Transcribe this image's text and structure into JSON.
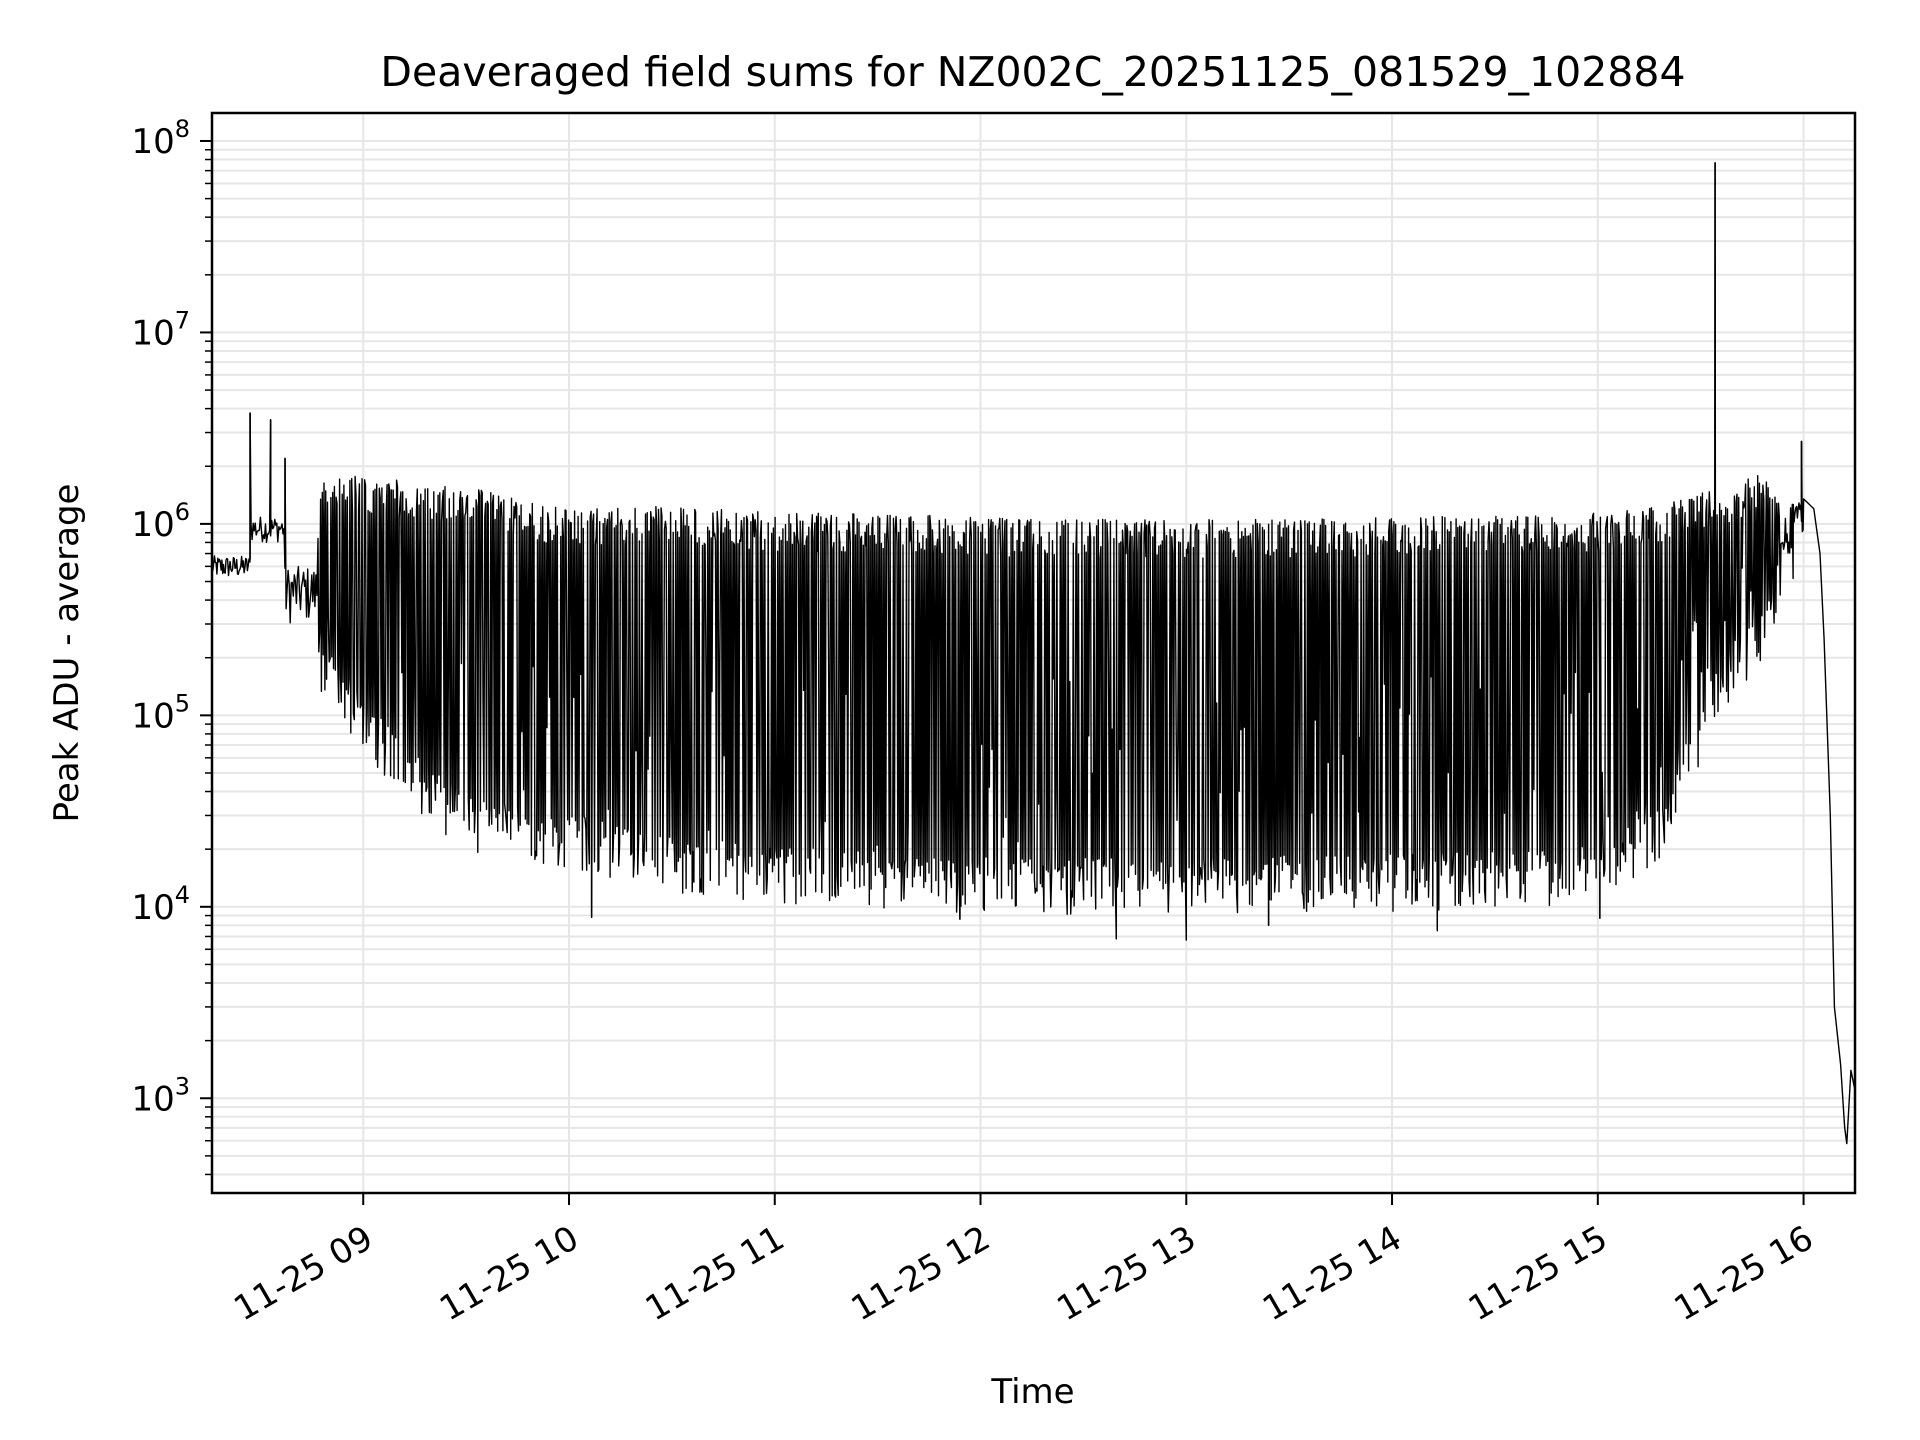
{
  "chart_data": {
    "type": "line",
    "title": "Deaveraged field sums for NZ002C_20251125_081529_102884",
    "xlabel": "Time",
    "ylabel": "Peak ADU - average",
    "yscale": "log",
    "ylim": [
      320,
      140000000
    ],
    "xlim_hours": [
      8.265,
      16.25
    ],
    "grid": true,
    "line_color": "#000000",
    "grid_color": "#e6e6e6",
    "x_ticks": [
      {
        "hour": 9,
        "label": "11-25 09"
      },
      {
        "hour": 10,
        "label": "11-25 10"
      },
      {
        "hour": 11,
        "label": "11-25 11"
      },
      {
        "hour": 12,
        "label": "11-25 12"
      },
      {
        "hour": 13,
        "label": "11-25 13"
      },
      {
        "hour": 14,
        "label": "11-25 14"
      },
      {
        "hour": 15,
        "label": "11-25 15"
      },
      {
        "hour": 16,
        "label": "11-25 16"
      }
    ],
    "y_ticks": [
      {
        "value": 1000,
        "base": "10",
        "exp": "3"
      },
      {
        "value": 10000,
        "base": "10",
        "exp": "4"
      },
      {
        "value": 100000,
        "base": "10",
        "exp": "5"
      },
      {
        "value": 1000000,
        "base": "10",
        "exp": "6"
      },
      {
        "value": 10000000,
        "base": "10",
        "exp": "7"
      },
      {
        "value": 100000000,
        "base": "10",
        "exp": "8"
      }
    ],
    "series": [
      {
        "name": "field sums",
        "envelope_note": "dense oscillation between upper and lower envelopes",
        "upper_envelope": [
          [
            8.27,
            650000
          ],
          [
            8.45,
            650000
          ],
          [
            8.5,
            1050000
          ],
          [
            8.58,
            1000000
          ],
          [
            8.62,
            600000
          ],
          [
            8.75,
            450000
          ],
          [
            8.8,
            1400000
          ],
          [
            9.0,
            1500000
          ],
          [
            9.2,
            1400000
          ],
          [
            9.5,
            1300000
          ],
          [
            10.0,
            1000000
          ],
          [
            10.5,
            1050000
          ],
          [
            11.0,
            950000
          ],
          [
            11.5,
            950000
          ],
          [
            12.0,
            900000
          ],
          [
            12.5,
            880000
          ],
          [
            13.0,
            880000
          ],
          [
            13.5,
            880000
          ],
          [
            14.0,
            900000
          ],
          [
            14.5,
            920000
          ],
          [
            15.0,
            950000
          ],
          [
            15.3,
            1050000
          ],
          [
            15.6,
            1300000
          ],
          [
            15.8,
            1600000
          ],
          [
            15.85,
            1500000
          ],
          [
            15.9,
            900000
          ],
          [
            16.0,
            1300000
          ]
        ],
        "lower_envelope": [
          [
            8.75,
            400000
          ],
          [
            8.8,
            180000
          ],
          [
            9.0,
            90000
          ],
          [
            9.2,
            50000
          ],
          [
            9.5,
            28000
          ],
          [
            10.0,
            22000
          ],
          [
            10.5,
            17000
          ],
          [
            11.0,
            15000
          ],
          [
            11.5,
            14000
          ],
          [
            12.0,
            13000
          ],
          [
            12.5,
            13000
          ],
          [
            13.0,
            13000
          ],
          [
            13.5,
            13500
          ],
          [
            14.0,
            13500
          ],
          [
            14.5,
            14000
          ],
          [
            15.0,
            15000
          ],
          [
            15.3,
            25000
          ],
          [
            15.6,
            150000
          ],
          [
            15.85,
            300000
          ],
          [
            15.9,
            700000
          ]
        ],
        "spikes": [
          {
            "hour": 8.45,
            "value": 3800000
          },
          {
            "hour": 8.55,
            "value": 3500000
          },
          {
            "hour": 8.62,
            "value": 2200000
          },
          {
            "hour": 15.57,
            "value": 77000000
          },
          {
            "hour": 15.99,
            "value": 2700000
          }
        ],
        "dips": [
          {
            "hour": 10.11,
            "value": 8800
          },
          {
            "hour": 11.9,
            "value": 8600
          },
          {
            "hour": 12.66,
            "value": 6800
          },
          {
            "hour": 13.0,
            "value": 6700
          },
          {
            "hour": 13.4,
            "value": 8000
          },
          {
            "hour": 14.22,
            "value": 7500
          },
          {
            "hour": 15.01,
            "value": 8700
          }
        ],
        "tail": [
          [
            16.0,
            1350000
          ],
          [
            16.05,
            1200000
          ],
          [
            16.08,
            700000
          ],
          [
            16.1,
            250000
          ],
          [
            16.13,
            30000
          ],
          [
            16.15,
            3000
          ],
          [
            16.18,
            1500
          ],
          [
            16.2,
            700
          ],
          [
            16.21,
            580
          ],
          [
            16.23,
            1400
          ],
          [
            16.25,
            1100
          ]
        ]
      }
    ]
  }
}
